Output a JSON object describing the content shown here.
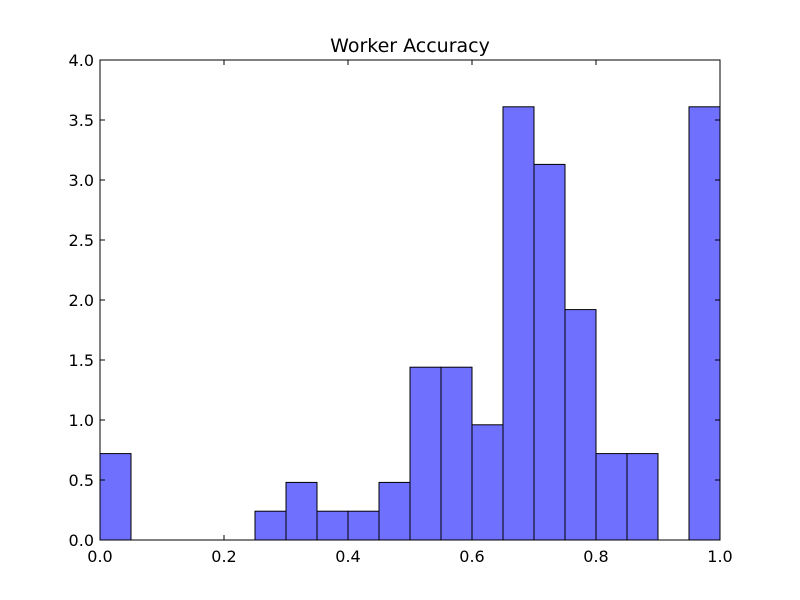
{
  "chart_data": {
    "type": "bar",
    "title": "Worker Accuracy",
    "xlabel": "",
    "ylabel": "",
    "xlim": [
      0.0,
      1.0
    ],
    "ylim": [
      0.0,
      4.0
    ],
    "x_ticks": [
      "0.0",
      "0.2",
      "0.4",
      "0.6",
      "0.8",
      "1.0"
    ],
    "x_tick_values": [
      0.0,
      0.2,
      0.4,
      0.6,
      0.8,
      1.0
    ],
    "y_ticks": [
      "0.0",
      "0.5",
      "1.0",
      "1.5",
      "2.0",
      "2.5",
      "3.0",
      "3.5",
      "4.0"
    ],
    "y_tick_values": [
      0.0,
      0.5,
      1.0,
      1.5,
      2.0,
      2.5,
      3.0,
      3.5,
      4.0
    ],
    "bin_width": 0.05,
    "bin_starts": [
      0.0,
      0.05,
      0.1,
      0.15,
      0.2,
      0.25,
      0.3,
      0.35,
      0.4,
      0.45,
      0.5,
      0.55,
      0.6,
      0.65,
      0.7,
      0.75,
      0.8,
      0.85,
      0.9,
      0.95
    ],
    "values": [
      0.72,
      0.0,
      0.0,
      0.0,
      0.0,
      0.24,
      0.48,
      0.24,
      0.24,
      0.48,
      1.44,
      1.44,
      0.96,
      3.61,
      3.13,
      1.92,
      0.72,
      0.72,
      0.0,
      3.61
    ],
    "grid": false,
    "legend": "none",
    "bar_color": "#4040ff",
    "bar_edge_color": "#000000"
  }
}
